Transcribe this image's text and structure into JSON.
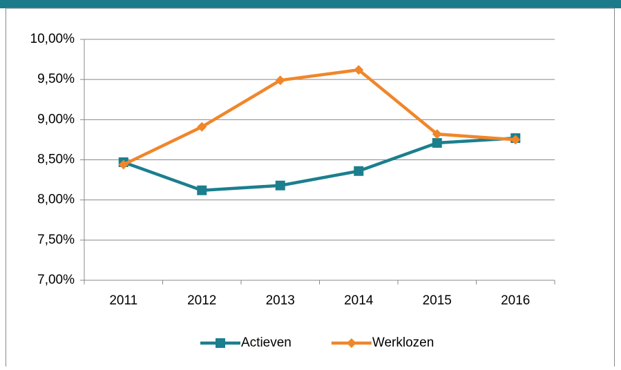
{
  "chart_data": {
    "type": "line",
    "categories": [
      "2011",
      "2012",
      "2013",
      "2014",
      "2015",
      "2016"
    ],
    "series": [
      {
        "name": "Actieven",
        "color": "#1b7f8e",
        "marker": "square",
        "values": [
          8.47,
          8.12,
          8.18,
          8.36,
          8.71,
          8.77
        ]
      },
      {
        "name": "Werklozen",
        "color": "#f0862a",
        "marker": "diamond",
        "values": [
          8.44,
          8.91,
          9.49,
          9.62,
          8.82,
          8.75
        ]
      }
    ],
    "ylim": [
      7,
      10
    ],
    "yticks": [
      {
        "value": 7,
        "label": "7,00%"
      },
      {
        "value": 7.5,
        "label": "7,50%"
      },
      {
        "value": 8,
        "label": "8,00%"
      },
      {
        "value": 8.5,
        "label": "8,50%"
      },
      {
        "value": 9,
        "label": "9,00%"
      },
      {
        "value": 9.5,
        "label": "9,50%"
      },
      {
        "value": 10,
        "label": "10,00%"
      }
    ],
    "grid": true,
    "legend": "bottom"
  }
}
